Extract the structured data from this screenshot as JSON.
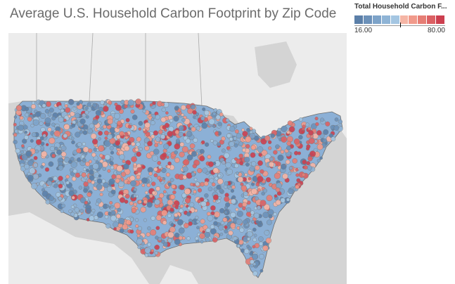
{
  "title": "Average U.S. Household Carbon Footprint by Zip Code",
  "legend": {
    "title": "Total Household Carbon F...",
    "min_label": "16.00",
    "max_label": "80.00",
    "min": 16.0,
    "max": 80.0,
    "colors": [
      "#5b7fa8",
      "#6c91b9",
      "#7da3c9",
      "#8fb4d6",
      "#a4c6e2",
      "#f5b5a5",
      "#f19a8b",
      "#e67e75",
      "#db6063",
      "#cc3f4f"
    ]
  },
  "map": {
    "region": "United States (lower 48)",
    "color_low": "#6f96c3",
    "color_high": "#d65a5f",
    "land_color": "#f2f2f2",
    "water_color": "#d6d6d6"
  }
}
